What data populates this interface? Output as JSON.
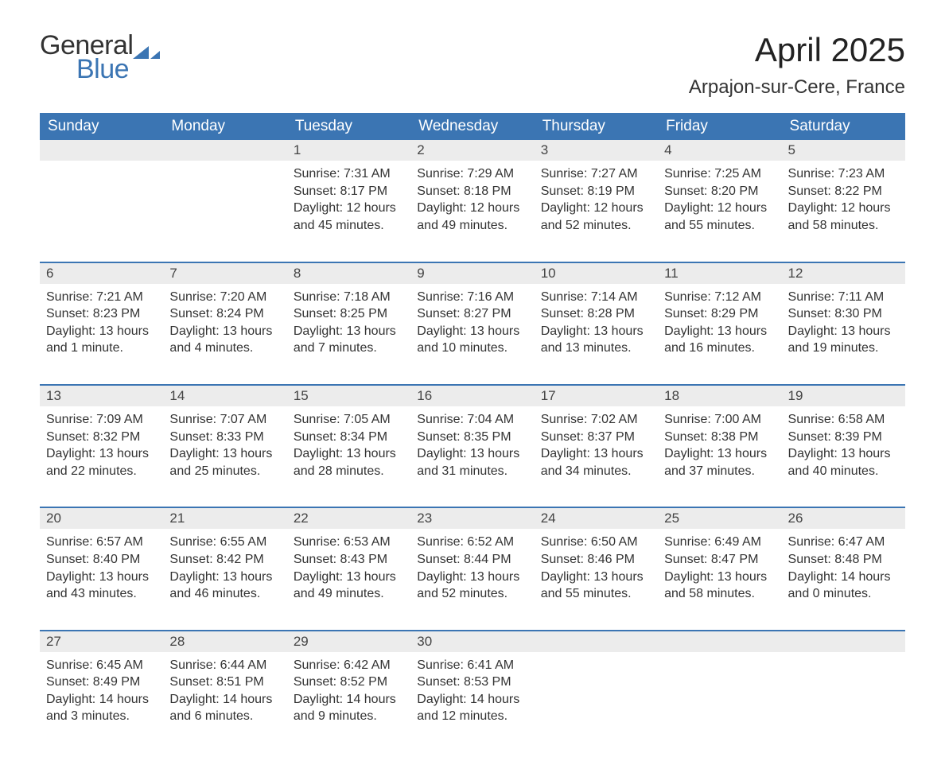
{
  "brand": {
    "word1": "General",
    "word2": "Blue",
    "accent_color": "#3b75b3"
  },
  "title": "April 2025",
  "location": "Arpajon-sur-Cere, France",
  "day_headers": [
    "Sunday",
    "Monday",
    "Tuesday",
    "Wednesday",
    "Thursday",
    "Friday",
    "Saturday"
  ],
  "colors": {
    "header_bg": "#3b75b3",
    "header_text": "#ffffff",
    "daynum_bg": "#ececec",
    "row_border": "#3b75b3",
    "body_text": "#333333"
  },
  "fonts": {
    "title_size_pt": 32,
    "location_size_pt": 18,
    "dow_size_pt": 14,
    "body_size_pt": 12
  },
  "weeks": [
    [
      {
        "day": "",
        "sunrise": "",
        "sunset": "",
        "daylight": ""
      },
      {
        "day": "",
        "sunrise": "",
        "sunset": "",
        "daylight": ""
      },
      {
        "day": "1",
        "sunrise": "Sunrise: 7:31 AM",
        "sunset": "Sunset: 8:17 PM",
        "daylight": "Daylight: 12 hours and 45 minutes."
      },
      {
        "day": "2",
        "sunrise": "Sunrise: 7:29 AM",
        "sunset": "Sunset: 8:18 PM",
        "daylight": "Daylight: 12 hours and 49 minutes."
      },
      {
        "day": "3",
        "sunrise": "Sunrise: 7:27 AM",
        "sunset": "Sunset: 8:19 PM",
        "daylight": "Daylight: 12 hours and 52 minutes."
      },
      {
        "day": "4",
        "sunrise": "Sunrise: 7:25 AM",
        "sunset": "Sunset: 8:20 PM",
        "daylight": "Daylight: 12 hours and 55 minutes."
      },
      {
        "day": "5",
        "sunrise": "Sunrise: 7:23 AM",
        "sunset": "Sunset: 8:22 PM",
        "daylight": "Daylight: 12 hours and 58 minutes."
      }
    ],
    [
      {
        "day": "6",
        "sunrise": "Sunrise: 7:21 AM",
        "sunset": "Sunset: 8:23 PM",
        "daylight": "Daylight: 13 hours and 1 minute."
      },
      {
        "day": "7",
        "sunrise": "Sunrise: 7:20 AM",
        "sunset": "Sunset: 8:24 PM",
        "daylight": "Daylight: 13 hours and 4 minutes."
      },
      {
        "day": "8",
        "sunrise": "Sunrise: 7:18 AM",
        "sunset": "Sunset: 8:25 PM",
        "daylight": "Daylight: 13 hours and 7 minutes."
      },
      {
        "day": "9",
        "sunrise": "Sunrise: 7:16 AM",
        "sunset": "Sunset: 8:27 PM",
        "daylight": "Daylight: 13 hours and 10 minutes."
      },
      {
        "day": "10",
        "sunrise": "Sunrise: 7:14 AM",
        "sunset": "Sunset: 8:28 PM",
        "daylight": "Daylight: 13 hours and 13 minutes."
      },
      {
        "day": "11",
        "sunrise": "Sunrise: 7:12 AM",
        "sunset": "Sunset: 8:29 PM",
        "daylight": "Daylight: 13 hours and 16 minutes."
      },
      {
        "day": "12",
        "sunrise": "Sunrise: 7:11 AM",
        "sunset": "Sunset: 8:30 PM",
        "daylight": "Daylight: 13 hours and 19 minutes."
      }
    ],
    [
      {
        "day": "13",
        "sunrise": "Sunrise: 7:09 AM",
        "sunset": "Sunset: 8:32 PM",
        "daylight": "Daylight: 13 hours and 22 minutes."
      },
      {
        "day": "14",
        "sunrise": "Sunrise: 7:07 AM",
        "sunset": "Sunset: 8:33 PM",
        "daylight": "Daylight: 13 hours and 25 minutes."
      },
      {
        "day": "15",
        "sunrise": "Sunrise: 7:05 AM",
        "sunset": "Sunset: 8:34 PM",
        "daylight": "Daylight: 13 hours and 28 minutes."
      },
      {
        "day": "16",
        "sunrise": "Sunrise: 7:04 AM",
        "sunset": "Sunset: 8:35 PM",
        "daylight": "Daylight: 13 hours and 31 minutes."
      },
      {
        "day": "17",
        "sunrise": "Sunrise: 7:02 AM",
        "sunset": "Sunset: 8:37 PM",
        "daylight": "Daylight: 13 hours and 34 minutes."
      },
      {
        "day": "18",
        "sunrise": "Sunrise: 7:00 AM",
        "sunset": "Sunset: 8:38 PM",
        "daylight": "Daylight: 13 hours and 37 minutes."
      },
      {
        "day": "19",
        "sunrise": "Sunrise: 6:58 AM",
        "sunset": "Sunset: 8:39 PM",
        "daylight": "Daylight: 13 hours and 40 minutes."
      }
    ],
    [
      {
        "day": "20",
        "sunrise": "Sunrise: 6:57 AM",
        "sunset": "Sunset: 8:40 PM",
        "daylight": "Daylight: 13 hours and 43 minutes."
      },
      {
        "day": "21",
        "sunrise": "Sunrise: 6:55 AM",
        "sunset": "Sunset: 8:42 PM",
        "daylight": "Daylight: 13 hours and 46 minutes."
      },
      {
        "day": "22",
        "sunrise": "Sunrise: 6:53 AM",
        "sunset": "Sunset: 8:43 PM",
        "daylight": "Daylight: 13 hours and 49 minutes."
      },
      {
        "day": "23",
        "sunrise": "Sunrise: 6:52 AM",
        "sunset": "Sunset: 8:44 PM",
        "daylight": "Daylight: 13 hours and 52 minutes."
      },
      {
        "day": "24",
        "sunrise": "Sunrise: 6:50 AM",
        "sunset": "Sunset: 8:46 PM",
        "daylight": "Daylight: 13 hours and 55 minutes."
      },
      {
        "day": "25",
        "sunrise": "Sunrise: 6:49 AM",
        "sunset": "Sunset: 8:47 PM",
        "daylight": "Daylight: 13 hours and 58 minutes."
      },
      {
        "day": "26",
        "sunrise": "Sunrise: 6:47 AM",
        "sunset": "Sunset: 8:48 PM",
        "daylight": "Daylight: 14 hours and 0 minutes."
      }
    ],
    [
      {
        "day": "27",
        "sunrise": "Sunrise: 6:45 AM",
        "sunset": "Sunset: 8:49 PM",
        "daylight": "Daylight: 14 hours and 3 minutes."
      },
      {
        "day": "28",
        "sunrise": "Sunrise: 6:44 AM",
        "sunset": "Sunset: 8:51 PM",
        "daylight": "Daylight: 14 hours and 6 minutes."
      },
      {
        "day": "29",
        "sunrise": "Sunrise: 6:42 AM",
        "sunset": "Sunset: 8:52 PM",
        "daylight": "Daylight: 14 hours and 9 minutes."
      },
      {
        "day": "30",
        "sunrise": "Sunrise: 6:41 AM",
        "sunset": "Sunset: 8:53 PM",
        "daylight": "Daylight: 14 hours and 12 minutes."
      },
      {
        "day": "",
        "sunrise": "",
        "sunset": "",
        "daylight": ""
      },
      {
        "day": "",
        "sunrise": "",
        "sunset": "",
        "daylight": ""
      },
      {
        "day": "",
        "sunrise": "",
        "sunset": "",
        "daylight": ""
      }
    ]
  ]
}
